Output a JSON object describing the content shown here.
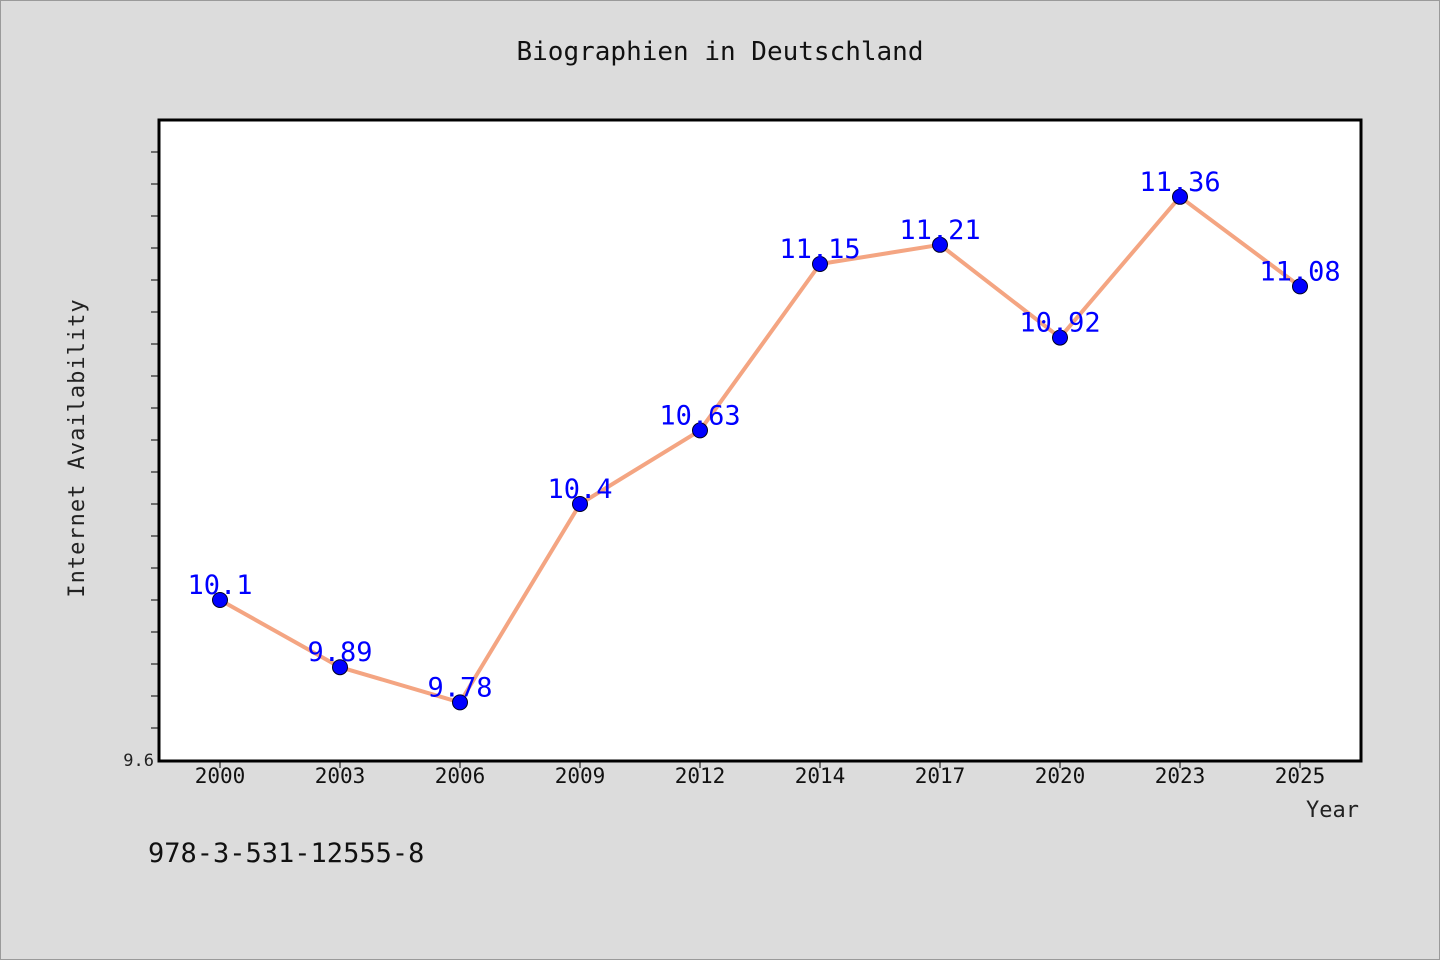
{
  "chart_data": {
    "type": "line",
    "title": "Biographien in Deutschland",
    "xlabel": "Year",
    "ylabel": "Internet Availability",
    "categories": [
      "2000",
      "2003",
      "2006",
      "2009",
      "2012",
      "2014",
      "2017",
      "2020",
      "2023",
      "2025"
    ],
    "series": [
      {
        "values": [
          10.1,
          9.89,
          9.78,
          10.4,
          10.63,
          11.15,
          11.21,
          10.92,
          11.36,
          11.08
        ],
        "labels": [
          "10.1",
          "9.89",
          "9.78",
          "10.4",
          "10.63",
          "11.15",
          "11.21",
          "10.92",
          "11.36",
          "11.08"
        ]
      }
    ],
    "ylim": [
      9.6,
      11.6
    ],
    "ytick_labels": [
      "9.6"
    ],
    "grid": false,
    "legend": "none",
    "colors": {
      "line": "#f4a582",
      "marker": "#0000ff",
      "data_label": "#0000ff",
      "background": "#dcdcdc",
      "plot_background": "#ffffff"
    }
  },
  "annotation": "978-3-531-12555-8"
}
